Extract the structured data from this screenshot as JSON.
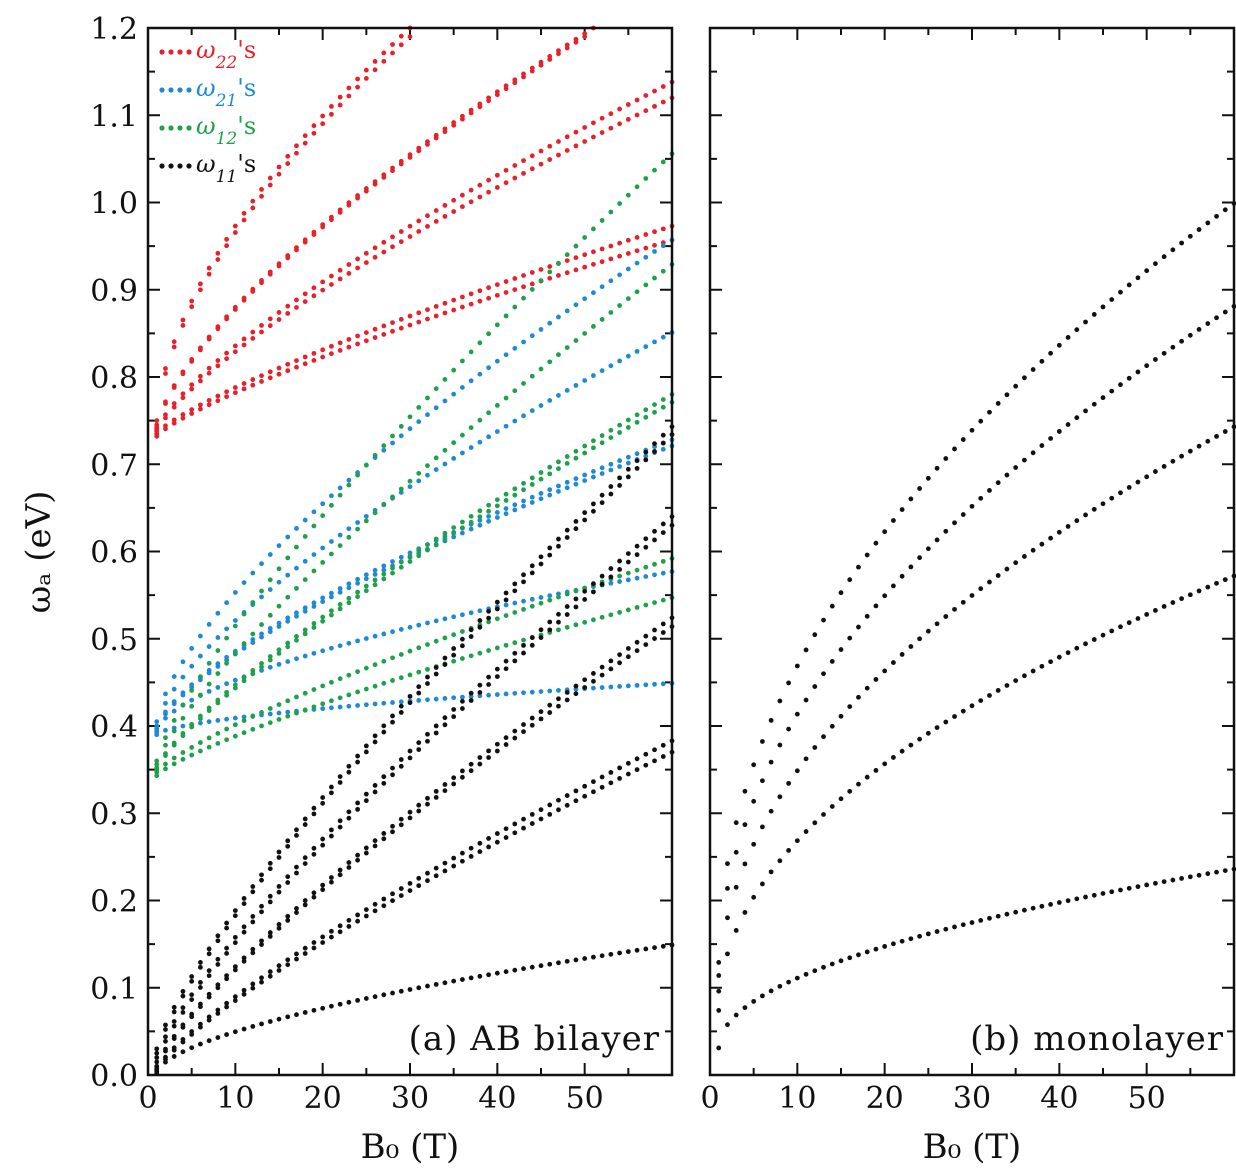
{
  "chart_data": [
    {
      "type": "scatter",
      "panel_label": "(a)  AB  bilayer",
      "xlabel": "B₀  (T)",
      "ylabel": "ωₐ  (eV)",
      "xlim": [
        0,
        60
      ],
      "ylim": [
        0,
        1.2
      ],
      "xticks": [
        0,
        10,
        20,
        30,
        40,
        50
      ],
      "yticks": [
        0.0,
        0.1,
        0.2,
        0.3,
        0.4,
        0.5,
        0.6,
        0.7,
        0.8,
        0.9,
        1.0,
        1.1,
        1.2
      ],
      "ytick_labels": [
        "0.0",
        "0.1",
        "0.2",
        "0.3",
        "0.4",
        "0.5",
        "0.6",
        "0.7",
        "0.8",
        "0.9",
        "1.0",
        "1.1",
        "1.2"
      ],
      "legend_position": "top-left",
      "grid": false,
      "x_sampling": {
        "start": 1,
        "end": 60,
        "step": 1
      },
      "series": [
        {
          "name": "ω22's",
          "legend_main": "ω",
          "legend_sub": "22",
          "legend_suffix": "'s",
          "color": "#e8202a",
          "curves": [
            {
              "x": [
                1,
                30
              ],
              "y": [
                0.75,
                1.2
              ],
              "power": 0.6
            },
            {
              "x": [
                1,
                30
              ],
              "y": [
                0.745,
                1.19
              ],
              "power": 0.6
            },
            {
              "x": [
                1,
                51
              ],
              "y": [
                0.742,
                1.2
              ],
              "power": 0.7
            },
            {
              "x": [
                1,
                50
              ],
              "y": [
                0.74,
                1.19
              ],
              "power": 0.7
            },
            {
              "x": [
                1,
                60
              ],
              "y": [
                0.738,
                1.138
              ],
              "power": 0.75
            },
            {
              "x": [
                1,
                60
              ],
              "y": [
                0.735,
                1.12
              ],
              "power": 0.75
            },
            {
              "x": [
                1,
                60
              ],
              "y": [
                0.735,
                0.973
              ],
              "power": 0.8
            },
            {
              "x": [
                1,
                60
              ],
              "y": [
                0.732,
                0.957
              ],
              "power": 0.8
            }
          ]
        },
        {
          "name": "ω21's",
          "legend_main": "ω",
          "legend_sub": "21",
          "legend_suffix": "'s",
          "color": "#1f8ad4",
          "curves": [
            {
              "x": [
                1,
                60
              ],
              "y": [
                0.405,
                0.957
              ],
              "power": 0.7
            },
            {
              "x": [
                1,
                60
              ],
              "y": [
                0.4,
                0.851
              ],
              "power": 0.7
            },
            {
              "x": [
                1,
                60
              ],
              "y": [
                0.397,
                0.728
              ],
              "power": 0.7
            },
            {
              "x": [
                1,
                60
              ],
              "y": [
                0.395,
                0.721
              ],
              "power": 0.7
            },
            {
              "x": [
                1,
                60
              ],
              "y": [
                0.393,
                0.577
              ],
              "power": 0.6
            },
            {
              "x": [
                1,
                60
              ],
              "y": [
                0.39,
                0.449
              ],
              "power": 0.6
            }
          ]
        },
        {
          "name": "ω12's",
          "legend_main": "ω",
          "legend_sub": "12",
          "legend_suffix": "'s",
          "color": "#1fa04a",
          "curves": [
            {
              "x": [
                1,
                60
              ],
              "y": [
                0.36,
                1.056
              ],
              "power": 0.8
            },
            {
              "x": [
                1,
                60
              ],
              "y": [
                0.356,
                0.929
              ],
              "power": 0.8
            },
            {
              "x": [
                1,
                60
              ],
              "y": [
                0.352,
                0.78
              ],
              "power": 0.8
            },
            {
              "x": [
                1,
                60
              ],
              "y": [
                0.35,
                0.771
              ],
              "power": 0.8
            },
            {
              "x": [
                1,
                60
              ],
              "y": [
                0.347,
                0.592
              ],
              "power": 0.8
            },
            {
              "x": [
                1,
                60
              ],
              "y": [
                0.343,
                0.547
              ],
              "power": 0.8
            }
          ]
        },
        {
          "name": "ω11's",
          "legend_main": "ω",
          "legend_sub": "11",
          "legend_suffix": "'s",
          "color": "#111111",
          "curves": [
            {
              "x": [
                1,
                60
              ],
              "y": [
                0.03,
                0.743
              ],
              "power": 0.8
            },
            {
              "x": [
                1,
                60
              ],
              "y": [
                0.025,
                0.734
              ],
              "power": 0.8
            },
            {
              "x": [
                1,
                60
              ],
              "y": [
                0.02,
                0.64
              ],
              "power": 0.8
            },
            {
              "x": [
                1,
                60
              ],
              "y": [
                0.015,
                0.63
              ],
              "power": 0.8
            },
            {
              "x": [
                1,
                60
              ],
              "y": [
                0.01,
                0.524
              ],
              "power": 0.8
            },
            {
              "x": [
                1,
                60
              ],
              "y": [
                0.008,
                0.514
              ],
              "power": 0.8
            },
            {
              "x": [
                1,
                60
              ],
              "y": [
                0.006,
                0.383
              ],
              "power": 0.8
            },
            {
              "x": [
                1,
                60
              ],
              "y": [
                0.004,
                0.37
              ],
              "power": 0.8
            },
            {
              "x": [
                1,
                60
              ],
              "y": [
                0.002,
                0.149
              ],
              "power": 0.6
            }
          ]
        }
      ]
    },
    {
      "type": "scatter",
      "panel_label": "(b)  monolayer",
      "xlabel": "B₀  (T)",
      "xlim": [
        0,
        60
      ],
      "ylim": [
        0,
        1.2
      ],
      "xticks": [
        0,
        10,
        20,
        30,
        40,
        50
      ],
      "yticks": [
        0.0,
        0.1,
        0.2,
        0.3,
        0.4,
        0.5,
        0.6,
        0.7,
        0.8,
        0.9,
        1.0,
        1.1,
        1.2
      ],
      "grid": false,
      "x_sampling": {
        "start": 1,
        "end": 60,
        "step": 1
      },
      "series": [
        {
          "color": "#111111",
          "curves": [
            {
              "x": [
                1,
                60
              ],
              "y": [
                0.129,
                0.999
              ],
              "power": 0.5
            },
            {
              "x": [
                1,
                60
              ],
              "y": [
                0.114,
                0.881
              ],
              "power": 0.5
            },
            {
              "x": [
                1,
                60
              ],
              "y": [
                0.096,
                0.743
              ],
              "power": 0.5
            },
            {
              "x": [
                1,
                60
              ],
              "y": [
                0.074,
                0.572
              ],
              "power": 0.5
            },
            {
              "x": [
                1,
                60
              ],
              "y": [
                0.031,
                0.236
              ],
              "power": 0.5
            }
          ]
        }
      ]
    }
  ]
}
